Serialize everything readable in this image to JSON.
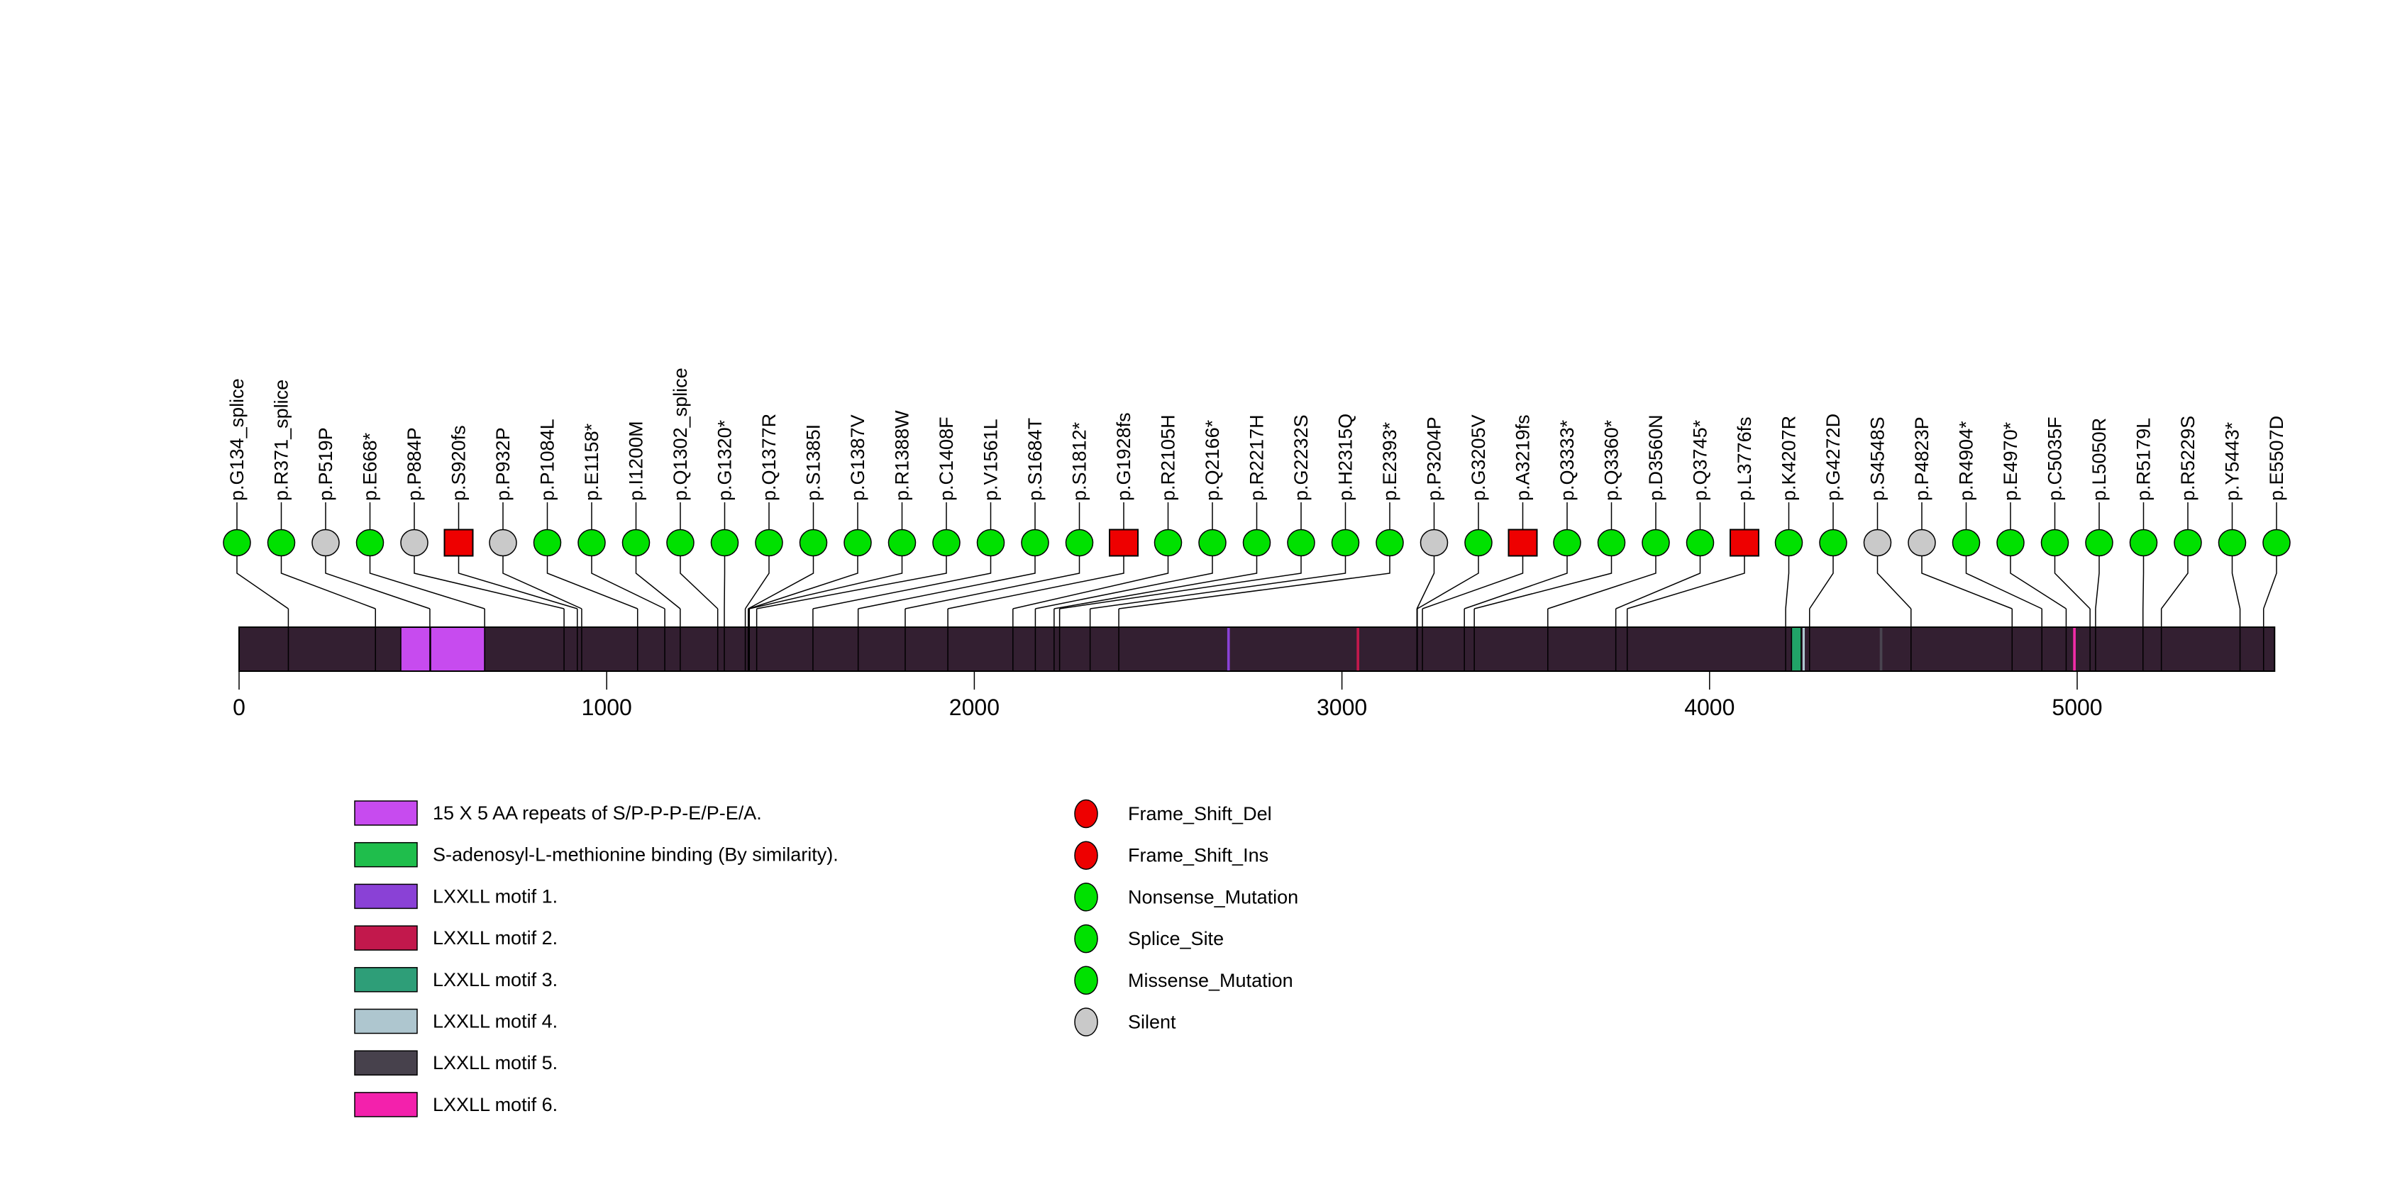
{
  "chart_data": {
    "type": "lollipop",
    "title": "",
    "axis_tick_values": [
      0,
      1000,
      2000,
      3000,
      4000,
      5000
    ],
    "protein_end_aa": 5537,
    "bar_color": "#331F31",
    "connector_color": "#000000",
    "type_colors": {
      "Frame_Shift": "#EE0000",
      "Nonsense_Mutation": "#00E100",
      "Splice_Site": "#00E100",
      "Missense_Mutation": "#00E100",
      "Silent": "#C9C9C9"
    },
    "mutations": [
      {
        "label": "p.G134_splice",
        "aa": 134,
        "type": "Splice_Site"
      },
      {
        "label": "p.R371_splice",
        "aa": 371,
        "type": "Splice_Site"
      },
      {
        "label": "p.P519P",
        "aa": 519,
        "type": "Silent"
      },
      {
        "label": "p.E668*",
        "aa": 668,
        "type": "Nonsense_Mutation"
      },
      {
        "label": "p.P884P",
        "aa": 884,
        "type": "Silent"
      },
      {
        "label": "p.S920fs",
        "aa": 920,
        "type": "Frame_Shift"
      },
      {
        "label": "p.P932P",
        "aa": 932,
        "type": "Silent"
      },
      {
        "label": "p.P1084L",
        "aa": 1084,
        "type": "Missense_Mutation"
      },
      {
        "label": "p.E1158*",
        "aa": 1158,
        "type": "Nonsense_Mutation"
      },
      {
        "label": "p.I1200M",
        "aa": 1200,
        "type": "Missense_Mutation"
      },
      {
        "label": "p.Q1302_splice",
        "aa": 1302,
        "type": "Splice_Site"
      },
      {
        "label": "p.G1320*",
        "aa": 1320,
        "type": "Nonsense_Mutation"
      },
      {
        "label": "p.Q1377R",
        "aa": 1377,
        "type": "Missense_Mutation"
      },
      {
        "label": "p.S1385I",
        "aa": 1385,
        "type": "Missense_Mutation"
      },
      {
        "label": "p.G1387V",
        "aa": 1387,
        "type": "Missense_Mutation"
      },
      {
        "label": "p.R1388W",
        "aa": 1388,
        "type": "Missense_Mutation"
      },
      {
        "label": "p.C1408F",
        "aa": 1408,
        "type": "Missense_Mutation"
      },
      {
        "label": "p.V1561L",
        "aa": 1561,
        "type": "Missense_Mutation"
      },
      {
        "label": "p.S1684T",
        "aa": 1684,
        "type": "Missense_Mutation"
      },
      {
        "label": "p.S1812*",
        "aa": 1812,
        "type": "Nonsense_Mutation"
      },
      {
        "label": "p.G1928fs",
        "aa": 1928,
        "type": "Frame_Shift"
      },
      {
        "label": "p.R2105H",
        "aa": 2105,
        "type": "Missense_Mutation"
      },
      {
        "label": "p.Q2166*",
        "aa": 2166,
        "type": "Nonsense_Mutation"
      },
      {
        "label": "p.R2217H",
        "aa": 2217,
        "type": "Missense_Mutation"
      },
      {
        "label": "p.G2232S",
        "aa": 2232,
        "type": "Missense_Mutation"
      },
      {
        "label": "p.H2315Q",
        "aa": 2315,
        "type": "Missense_Mutation"
      },
      {
        "label": "p.E2393*",
        "aa": 2393,
        "type": "Nonsense_Mutation"
      },
      {
        "label": "p.P3204P",
        "aa": 3204,
        "type": "Silent"
      },
      {
        "label": "p.G3205V",
        "aa": 3205,
        "type": "Missense_Mutation"
      },
      {
        "label": "p.A3219fs",
        "aa": 3219,
        "type": "Frame_Shift"
      },
      {
        "label": "p.Q3333*",
        "aa": 3333,
        "type": "Nonsense_Mutation"
      },
      {
        "label": "p.Q3360*",
        "aa": 3360,
        "type": "Nonsense_Mutation"
      },
      {
        "label": "p.D3560N",
        "aa": 3560,
        "type": "Missense_Mutation"
      },
      {
        "label": "p.Q3745*",
        "aa": 3745,
        "type": "Nonsense_Mutation"
      },
      {
        "label": "p.L3776fs",
        "aa": 3776,
        "type": "Frame_Shift"
      },
      {
        "label": "p.K4207R",
        "aa": 4207,
        "type": "Missense_Mutation"
      },
      {
        "label": "p.G4272D",
        "aa": 4272,
        "type": "Missense_Mutation"
      },
      {
        "label": "p.S4548S",
        "aa": 4548,
        "type": "Silent"
      },
      {
        "label": "p.P4823P",
        "aa": 4823,
        "type": "Silent"
      },
      {
        "label": "p.R4904*",
        "aa": 4904,
        "type": "Nonsense_Mutation"
      },
      {
        "label": "p.E4970*",
        "aa": 4970,
        "type": "Nonsense_Mutation"
      },
      {
        "label": "p.C5035F",
        "aa": 5035,
        "type": "Missense_Mutation"
      },
      {
        "label": "p.L5050R",
        "aa": 5050,
        "type": "Missense_Mutation"
      },
      {
        "label": "p.R5179L",
        "aa": 5179,
        "type": "Missense_Mutation"
      },
      {
        "label": "p.R5229S",
        "aa": 5229,
        "type": "Missense_Mutation"
      },
      {
        "label": "p.Y5443*",
        "aa": 5443,
        "type": "Nonsense_Mutation"
      },
      {
        "label": "p.E5507D",
        "aa": 5507,
        "type": "Missense_Mutation"
      }
    ],
    "domains": [
      {
        "name": "15 X 5 AA repeats of S/P-P-P-E/P-E/A.",
        "start": 440,
        "end": 521,
        "color": "#C74BEF",
        "outlined": true
      },
      {
        "name": "15 X 5 AA repeats of S/P-P-P-E/P-E/A.",
        "start": 521,
        "end": 668,
        "color": "#C74BEF",
        "outlined": true
      },
      {
        "name": "LXXLL motif 1.",
        "start": 2688,
        "end": 2695,
        "color": "#8A41D6",
        "outlined": false
      },
      {
        "name": "LXXLL motif 2.",
        "start": 3040,
        "end": 3047,
        "color": "#C2184C",
        "outlined": false
      },
      {
        "name": "S-adenosyl-L-methionine binding (By similarity).",
        "start": 4223,
        "end": 4249,
        "color": "#21A368",
        "outlined": true
      },
      {
        "name": "LXXLL motif 4.",
        "start": 4253,
        "end": 4259,
        "color": "#AEC6CF",
        "outlined": false
      },
      {
        "name": "LXXLL motif 5.",
        "start": 4463,
        "end": 4470,
        "color": "#4A4450",
        "outlined": false
      },
      {
        "name": "LXXLL motif 6.",
        "start": 4989,
        "end": 4996,
        "color": "#F22CA8",
        "outlined": false
      }
    ],
    "legend_domains": [
      {
        "label": "15 X 5 AA repeats of S/P-P-P-E/P-E/A.",
        "color": "#C74BEF"
      },
      {
        "label": "S-adenosyl-L-methionine binding (By similarity).",
        "color": "#1FBE4C"
      },
      {
        "label": "LXXLL motif 1.",
        "color": "#8A41D6"
      },
      {
        "label": "LXXLL motif 2.",
        "color": "#C2184C"
      },
      {
        "label": "LXXLL motif 3.",
        "color": "#2E9E78"
      },
      {
        "label": "LXXLL motif 4.",
        "color": "#AEC6CF"
      },
      {
        "label": "LXXLL motif 5.",
        "color": "#47414C"
      },
      {
        "label": "LXXLL motif 6.",
        "color": "#F321AC"
      }
    ],
    "legend_mutation_types": [
      {
        "label": "Frame_Shift_Del",
        "color": "#EE0000"
      },
      {
        "label": "Frame_Shift_Ins",
        "color": "#EE0000"
      },
      {
        "label": "Nonsense_Mutation",
        "color": "#00E100"
      },
      {
        "label": "Splice_Site",
        "color": "#00E100"
      },
      {
        "label": "Missense_Mutation",
        "color": "#00E100"
      },
      {
        "label": "Silent",
        "color": "#C9C9C9"
      }
    ]
  }
}
